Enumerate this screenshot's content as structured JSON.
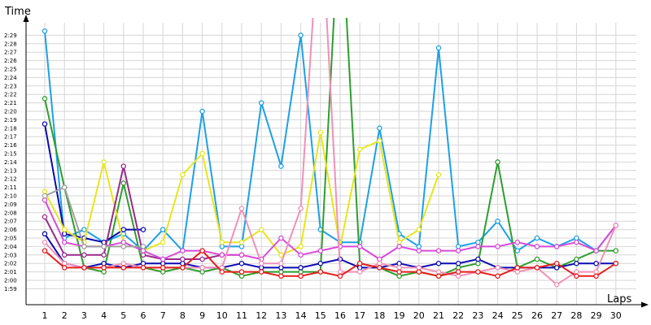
{
  "chart_data": {
    "type": "line",
    "xlabel": "Laps",
    "ylabel": "Time",
    "x": [
      1,
      2,
      3,
      4,
      5,
      6,
      7,
      8,
      9,
      10,
      11,
      12,
      13,
      14,
      15,
      16,
      17,
      18,
      19,
      20,
      21,
      22,
      23,
      24,
      25,
      26,
      27,
      28,
      29,
      30
    ],
    "x_range": [
      1,
      30
    ],
    "y_range_seconds": [
      118,
      151
    ],
    "y_ticks": [
      "1:59",
      "2:00",
      "2:01",
      "2:02",
      "2:03",
      "2:04",
      "2:05",
      "2:06",
      "2:07",
      "2:08",
      "2:09",
      "2:10",
      "2:11",
      "2:12",
      "2:13",
      "2:14",
      "2:15",
      "2:16",
      "2:17",
      "2:18",
      "2:19",
      "2:20",
      "2:21",
      "2:22",
      "2:23",
      "2:24",
      "2:25",
      "2:26",
      "2:27",
      "2:28",
      "2:29"
    ],
    "grid": true,
    "legend": "none",
    "y_unit": "seconds",
    "series": [
      {
        "color": "#1ea0e6",
        "values": [
          149.5,
          125,
          126,
          124.5,
          125.5,
          123.5,
          126,
          123.5,
          140,
          124,
          124,
          141,
          133.5,
          149,
          126,
          124.5,
          124.5,
          138,
          125.5,
          124,
          147.5,
          124,
          124.5,
          127,
          123.5,
          125,
          124,
          125,
          123.5,
          126.5
        ]
      },
      {
        "color": "#2e9e2e",
        "values": [
          141.5,
          131,
          121.5,
          121,
          131.5,
          121.5,
          121,
          121.5,
          121,
          121.5,
          120.5,
          121,
          121,
          121,
          121,
          165,
          122,
          121.5,
          120.5,
          121,
          120.5,
          121.5,
          122,
          134,
          121.5,
          122.5,
          121.5,
          122.5,
          123.5,
          123.5
        ]
      },
      {
        "color": "#0b0bb0",
        "values": [
          138.5,
          125.5,
          125,
          124.5,
          126,
          126,
          null,
          null,
          null,
          null,
          null,
          null,
          null,
          null,
          null,
          null,
          null,
          null,
          null,
          null,
          null,
          null,
          null,
          null,
          null,
          null,
          null,
          null,
          null,
          null
        ]
      },
      {
        "color": "#0b0bb0",
        "values": [
          125.5,
          122,
          121.5,
          122,
          121.5,
          122,
          122,
          122,
          121.5,
          121.5,
          122,
          121.5,
          121.5,
          121.5,
          122,
          122.5,
          121.5,
          121.5,
          122,
          121.5,
          122,
          122,
          122.5,
          121.5,
          121.5,
          121.5,
          121.5,
          122,
          122,
          122
        ]
      },
      {
        "color": "#e6e61e",
        "values": [
          130.5,
          126,
          124.5,
          134,
          124.5,
          123.5,
          124.5,
          132.5,
          135,
          124.5,
          124.5,
          126,
          123,
          124,
          137.5,
          124,
          135.5,
          136.5,
          124.5,
          126,
          132.5,
          null,
          null,
          null,
          null,
          null,
          null,
          null,
          null,
          null
        ]
      },
      {
        "color": "#9a2a8a",
        "values": [
          127.5,
          123,
          123,
          123,
          133.5,
          123,
          122.5,
          122.5,
          122.5,
          123,
          123,
          null,
          null,
          null,
          null,
          null,
          null,
          null,
          null,
          null,
          null,
          null,
          null,
          null,
          null,
          null,
          null,
          null,
          null,
          null
        ]
      },
      {
        "color": "#d84ad8",
        "values": [
          129.5,
          124.5,
          124,
          124,
          124.5,
          123.5,
          122.5,
          123.5,
          123.5,
          123,
          123,
          122.5,
          125,
          123,
          123.5,
          124,
          124,
          122.5,
          124,
          123.5,
          123.5,
          123.5,
          124,
          124,
          124.5,
          124,
          124,
          124.5,
          123.5,
          126.5
        ]
      },
      {
        "color": "#f090b8",
        "values": [
          124.5,
          122,
          121.5,
          121.5,
          122,
          121.5,
          121.5,
          121.5,
          121.5,
          121.5,
          128.5,
          122,
          122,
          128.5,
          165,
          121,
          121,
          122,
          121.5,
          121.5,
          121,
          120.5,
          121,
          121.5,
          121,
          121.5,
          119.5,
          121,
          121,
          126.5
        ]
      },
      {
        "color": "#a0a0a0",
        "values": [
          130,
          131,
          124,
          124,
          124,
          124,
          null,
          null,
          null,
          null,
          null,
          null,
          null,
          null,
          null,
          null,
          null,
          null,
          null,
          null,
          null,
          null,
          null,
          null,
          null,
          null,
          null,
          null,
          null,
          null
        ]
      },
      {
        "color": "#e61e1e",
        "values": [
          123.5,
          121.5,
          121.5,
          121.5,
          121.5,
          121.5,
          121.5,
          121.5,
          123.5,
          121,
          121,
          121,
          120.5,
          120.5,
          121,
          120.5,
          122,
          121.5,
          121,
          121,
          120.5,
          121,
          121,
          120.5,
          121.5,
          121.5,
          122,
          120.5,
          120.5,
          122
        ]
      }
    ]
  }
}
